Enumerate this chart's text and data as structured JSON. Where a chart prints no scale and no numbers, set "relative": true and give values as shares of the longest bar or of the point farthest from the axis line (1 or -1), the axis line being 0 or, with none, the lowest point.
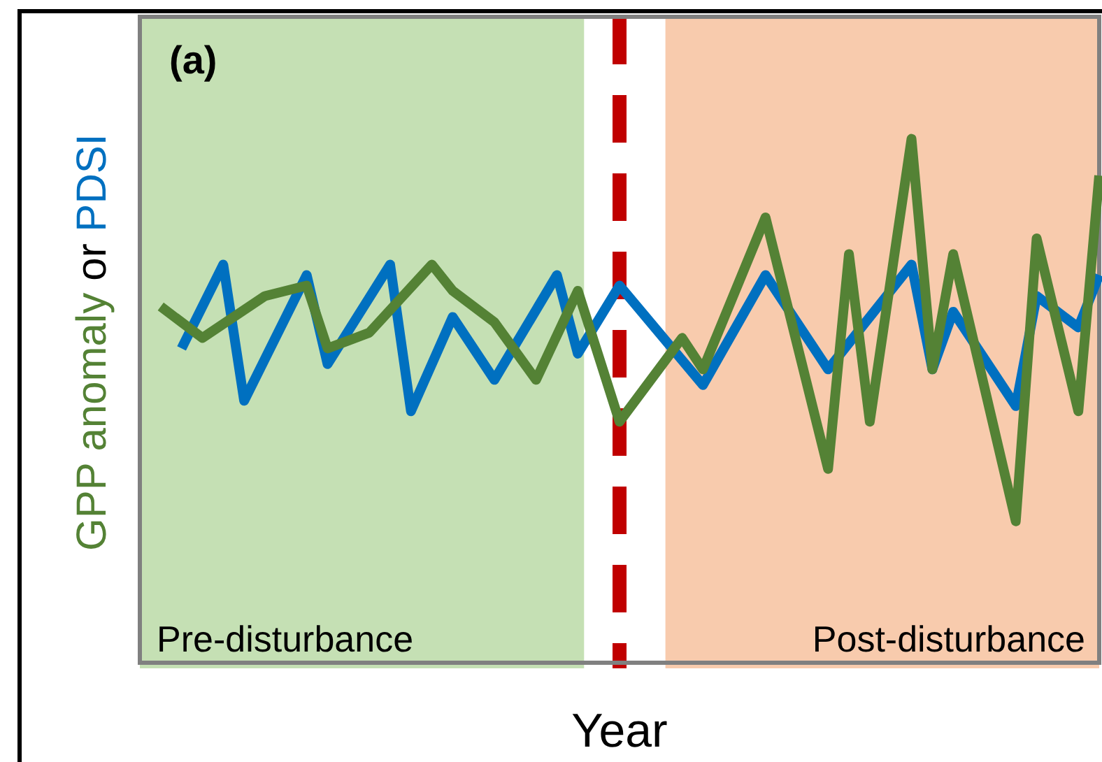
{
  "chart_data": {
    "type": "line",
    "title": "(a)",
    "xlabel": "Year",
    "ylabel": "or",
    "relative": true,
    "grid": false,
    "legend": false,
    "marker": "none",
    "line_style": "solid",
    "categories": [
      null,
      null,
      null,
      null,
      null,
      null,
      null,
      null,
      null,
      null,
      null,
      null,
      null,
      null,
      null,
      null,
      null,
      null,
      null,
      null,
      null,
      null,
      null,
      null,
      null,
      null,
      null,
      null,
      null,
      null,
      null,
      null,
      null,
      null,
      null,
      null,
      null,
      null,
      null,
      null,
      null,
      null,
      null,
      null,
      null,
      null,
      null
    ],
    "series": [
      {
        "name": "GPP anomaly",
        "color": "#548235",
        "values": [
          null,
          0.68,
          null,
          0.62,
          null,
          null,
          0.7,
          null,
          0.72,
          0.6,
          null,
          0.63,
          null,
          null,
          0.76,
          0.71,
          null,
          0.65,
          null,
          0.54,
          null,
          0.71,
          null,
          0.46,
          null,
          null,
          0.62,
          0.56,
          null,
          null,
          0.85,
          null,
          null,
          0.37,
          0.78,
          0.46,
          null,
          1,
          0.56,
          0.78,
          null,
          null,
          0.27,
          0.81,
          null,
          0.48,
          0.93
        ]
      },
      {
        "name": "PDSI",
        "color": "#0070c0",
        "values": [
          null,
          null,
          0.6,
          null,
          0.76,
          0.5,
          null,
          null,
          0.74,
          0.57,
          null,
          null,
          0.76,
          0.48,
          null,
          0.66,
          null,
          0.54,
          null,
          null,
          0.74,
          0.59,
          null,
          0.72,
          null,
          null,
          null,
          0.53,
          null,
          null,
          0.74,
          null,
          null,
          0.56,
          null,
          null,
          null,
          0.76,
          0.56,
          0.67,
          null,
          null,
          0.49,
          0.7,
          null,
          0.64,
          0.74
        ]
      }
    ],
    "annotations": [
      "Pre-disturbance",
      "Post-disturbance"
    ]
  }
}
